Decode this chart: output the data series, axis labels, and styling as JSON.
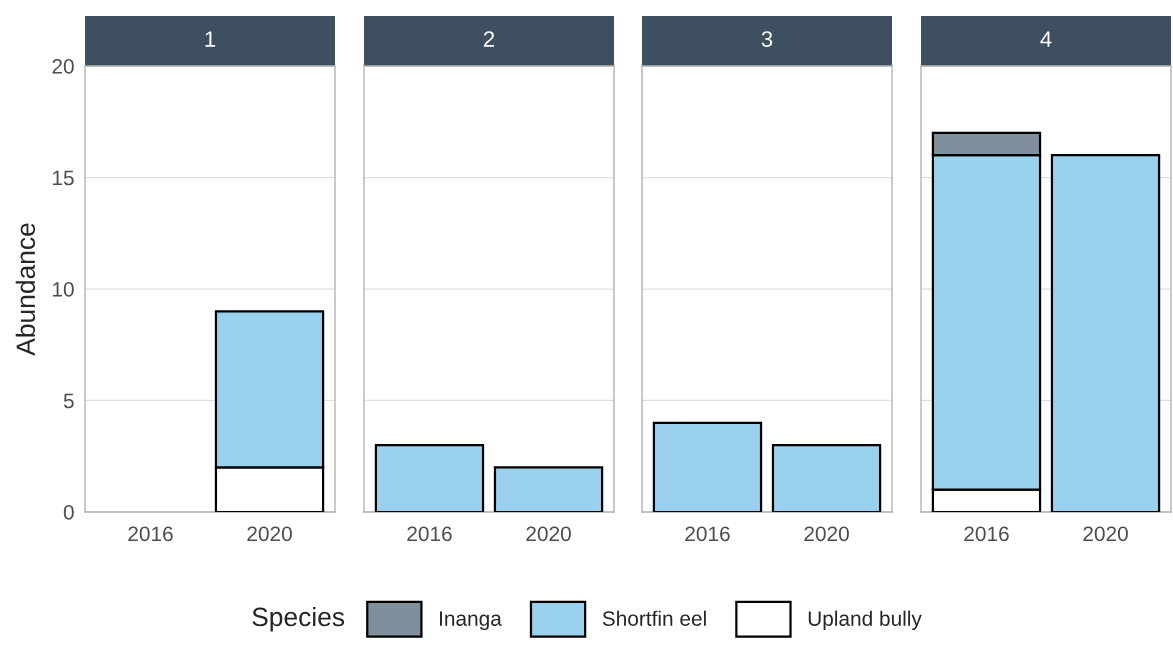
{
  "chart_data": [
    {
      "type": "bar",
      "title": "1",
      "ylabel": "Abundance",
      "categories": [
        "2016",
        "2020"
      ],
      "stacked": true,
      "ylim": [
        0,
        20
      ],
      "yticks": [
        0,
        5,
        10,
        15,
        20
      ],
      "grid": "y",
      "legend": "bottom",
      "legend_title": "Species",
      "series": [
        {
          "name": "Upland bully",
          "color": "#ffffff",
          "values": [
            null,
            2
          ]
        },
        {
          "name": "Shortfin eel",
          "color": "#99d1ee",
          "values": [
            null,
            7
          ]
        },
        {
          "name": "Inanga",
          "color": "#7f8f9c",
          "values": [
            null,
            null
          ]
        }
      ]
    },
    {
      "type": "bar",
      "title": "2",
      "categories": [
        "2016",
        "2020"
      ],
      "stacked": true,
      "ylim": [
        0,
        20
      ],
      "yticks": [
        0,
        5,
        10,
        15,
        20
      ],
      "grid": "y",
      "tick_labels": "x",
      "series": [
        {
          "color": "#99d1ee",
          "values": [
            3,
            2
          ]
        }
      ]
    },
    {
      "type": "bar",
      "title": "3",
      "categories": [
        "2016",
        "2020"
      ],
      "stacked": true,
      "ylim": [
        0,
        20
      ],
      "yticks": [
        0,
        5,
        10,
        15,
        20
      ],
      "grid": "y",
      "tick_labels": "x",
      "series": [
        {
          "color": "#99d1ee",
          "values": [
            4,
            3
          ]
        }
      ]
    },
    {
      "type": "bar",
      "title": "4",
      "categories": [
        "2016",
        "2020"
      ],
      "stacked": true,
      "ylim": [
        0,
        20
      ],
      "yticks": [
        0,
        5,
        10,
        15,
        20
      ],
      "grid": "y",
      "tick_labels": "x",
      "series": [
        {
          "color": "#ffffff",
          "values": [
            1,
            null
          ]
        },
        {
          "color": "#99d1ee",
          "values": [
            15,
            16
          ]
        },
        {
          "color": "#7f8f9c",
          "values": [
            1,
            null
          ]
        }
      ]
    }
  ]
}
